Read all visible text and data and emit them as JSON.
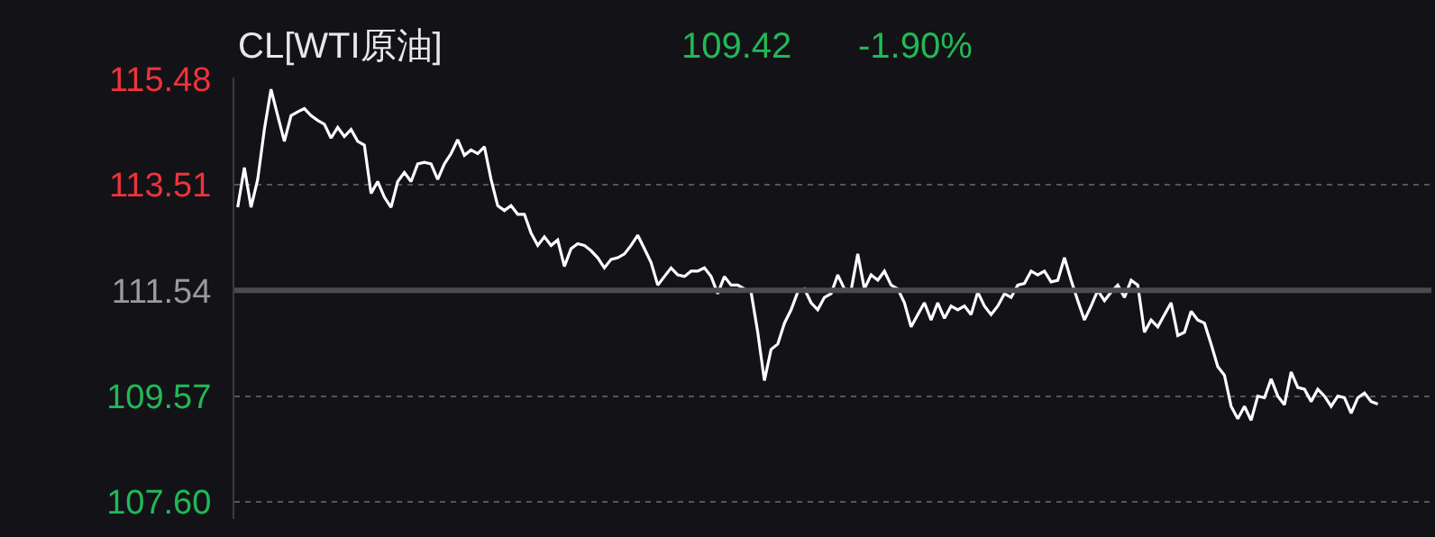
{
  "chart_data": {
    "type": "line",
    "title": "CL[WTI原油]",
    "annotations": [
      "109.42",
      "-1.90%"
    ],
    "categories": [
      null,
      null,
      null,
      null,
      null,
      null,
      null,
      null,
      null,
      null,
      null,
      null,
      null,
      null,
      null,
      null,
      null,
      null,
      null,
      null,
      null,
      null,
      null,
      null,
      null,
      null,
      null,
      null,
      null,
      null,
      null,
      null,
      null,
      null,
      null,
      null,
      null,
      null,
      null,
      null,
      null,
      null,
      null,
      null,
      null,
      null,
      null,
      null,
      null,
      null,
      null,
      null,
      null,
      null,
      null,
      null,
      null,
      null,
      null,
      null,
      null,
      null,
      null,
      null,
      null,
      null,
      null,
      null,
      null,
      null,
      null,
      null,
      null,
      null,
      null,
      null,
      null,
      null,
      null,
      null,
      null,
      null,
      null,
      null,
      null,
      null,
      null,
      null,
      null,
      null,
      null,
      null,
      null,
      null,
      null,
      null,
      null,
      null,
      null,
      null,
      null,
      null,
      null,
      null,
      null,
      null,
      null,
      null,
      null,
      null,
      null,
      null,
      null,
      null,
      null,
      null,
      null,
      null,
      null,
      null,
      null,
      null,
      null,
      null,
      null,
      null,
      null,
      null,
      null,
      null,
      null,
      null,
      null,
      null,
      null,
      null,
      null,
      null,
      null,
      null,
      null,
      null,
      null,
      null,
      null,
      null,
      null,
      null,
      null,
      null,
      null,
      null,
      null,
      null,
      null,
      null,
      null,
      null,
      null,
      null,
      null,
      null,
      null,
      null,
      null,
      null,
      null,
      null,
      null,
      null,
      null,
      null
    ],
    "series": [
      {
        "color": "#ffffff",
        "values": [
          113.09,
          113.83,
          113.09,
          113.61,
          114.54,
          115.29,
          114.8,
          114.32,
          114.8,
          114.87,
          114.93,
          114.8,
          114.71,
          114.64,
          114.38,
          114.58,
          114.41,
          114.54,
          114.32,
          114.25,
          113.35,
          113.57,
          113.28,
          113.09,
          113.57,
          113.74,
          113.57,
          113.9,
          113.93,
          113.9,
          113.61,
          113.9,
          114.09,
          114.35,
          114.06,
          114.16,
          114.09,
          114.22,
          113.61,
          113.12,
          113.03,
          113.12,
          112.96,
          112.96,
          112.61,
          112.38,
          112.54,
          112.38,
          112.48,
          111.99,
          112.32,
          112.41,
          112.38,
          112.28,
          112.15,
          111.96,
          112.12,
          112.15,
          112.22,
          112.38,
          112.57,
          112.32,
          112.06,
          111.64,
          111.8,
          111.96,
          111.83,
          111.8,
          111.9,
          111.9,
          111.96,
          111.8,
          111.48,
          111.8,
          111.64,
          111.64,
          111.57,
          111.51,
          110.76,
          109.86,
          110.44,
          110.54,
          110.93,
          111.18,
          111.51,
          111.57,
          111.31,
          111.18,
          111.41,
          111.48,
          111.83,
          111.57,
          111.54,
          112.22,
          111.57,
          111.83,
          111.73,
          111.9,
          111.64,
          111.57,
          111.31,
          110.86,
          111.09,
          111.31,
          110.99,
          111.31,
          111.02,
          111.25,
          111.18,
          111.25,
          111.09,
          111.51,
          111.25,
          111.09,
          111.25,
          111.48,
          111.41,
          111.64,
          111.67,
          111.9,
          111.83,
          111.9,
          111.7,
          111.73,
          112.15,
          111.73,
          111.35,
          110.99,
          111.25,
          111.54,
          111.35,
          111.51,
          111.64,
          111.41,
          111.73,
          111.64,
          110.76,
          110.99,
          110.86,
          111.09,
          111.31,
          110.7,
          110.76,
          111.15,
          110.99,
          110.93,
          110.54,
          110.12,
          109.96,
          109.38,
          109.15,
          109.38,
          109.12,
          109.57,
          109.54,
          109.89,
          109.57,
          109.41,
          110.02,
          109.73,
          109.7,
          109.47,
          109.7,
          109.57,
          109.38,
          109.57,
          109.54,
          109.25,
          109.54,
          109.63,
          109.47,
          109.42
        ]
      }
    ],
    "ylim": [
      107.28,
      115.51
    ],
    "yticks": [
      {
        "value": 107.6,
        "label": "107.60"
      },
      {
        "value": 109.57,
        "label": "109.57"
      },
      {
        "value": 111.54,
        "label": "111.54"
      },
      {
        "value": 113.51,
        "label": "113.51"
      },
      {
        "value": 115.48,
        "label": "115.48"
      }
    ],
    "ref_lines": [
      {
        "axis": "y",
        "value": 111.54,
        "color": "#4a4a50"
      }
    ],
    "grid": "y",
    "marker": "none",
    "line_style": "solid",
    "tick_labels": "y"
  }
}
